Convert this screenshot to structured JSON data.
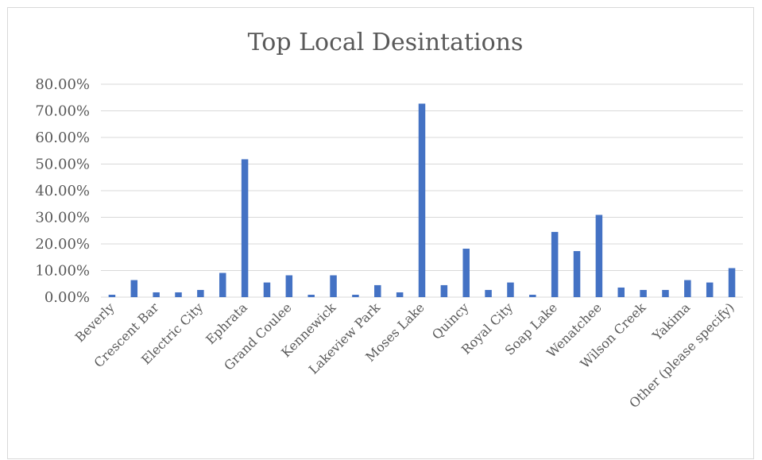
{
  "chart_data": {
    "type": "bar",
    "title": "Top Local Desintations",
    "xlabel": "",
    "ylabel": "",
    "ylim": [
      0,
      0.8
    ],
    "yticks": [
      0,
      0.1,
      0.2,
      0.3,
      0.4,
      0.5,
      0.6,
      0.7,
      0.8
    ],
    "ytick_labels": [
      "0.00%",
      "10.00%",
      "20.00%",
      "30.00%",
      "40.00%",
      "50.00%",
      "60.00%",
      "70.00%",
      "80.00%"
    ],
    "grid": true,
    "legend": "none",
    "bar_color": "#4472c4",
    "categories": [
      "Beverly",
      "",
      "Crescent Bar",
      "",
      "Electric City",
      "",
      "Ephrata",
      "",
      "Grand Coulee",
      "",
      "Kennewick",
      "",
      "Lakeview Park",
      "",
      "Moses Lake",
      "",
      "Quincy",
      "",
      "Royal City",
      "",
      "Soap Lake",
      "",
      "Wenatchee",
      "",
      "Wilson Creek",
      "",
      "Yakima",
      "",
      "Other (please specify)"
    ],
    "values": [
      0.009,
      0.064,
      0.018,
      0.018,
      0.027,
      0.091,
      0.518,
      0.055,
      0.082,
      0.009,
      0.082,
      0.009,
      0.045,
      0.018,
      0.727,
      0.045,
      0.182,
      0.027,
      0.055,
      0.009,
      0.245,
      0.173,
      0.309,
      0.036,
      0.027,
      0.027,
      0.064,
      0.055,
      0.109
    ]
  }
}
